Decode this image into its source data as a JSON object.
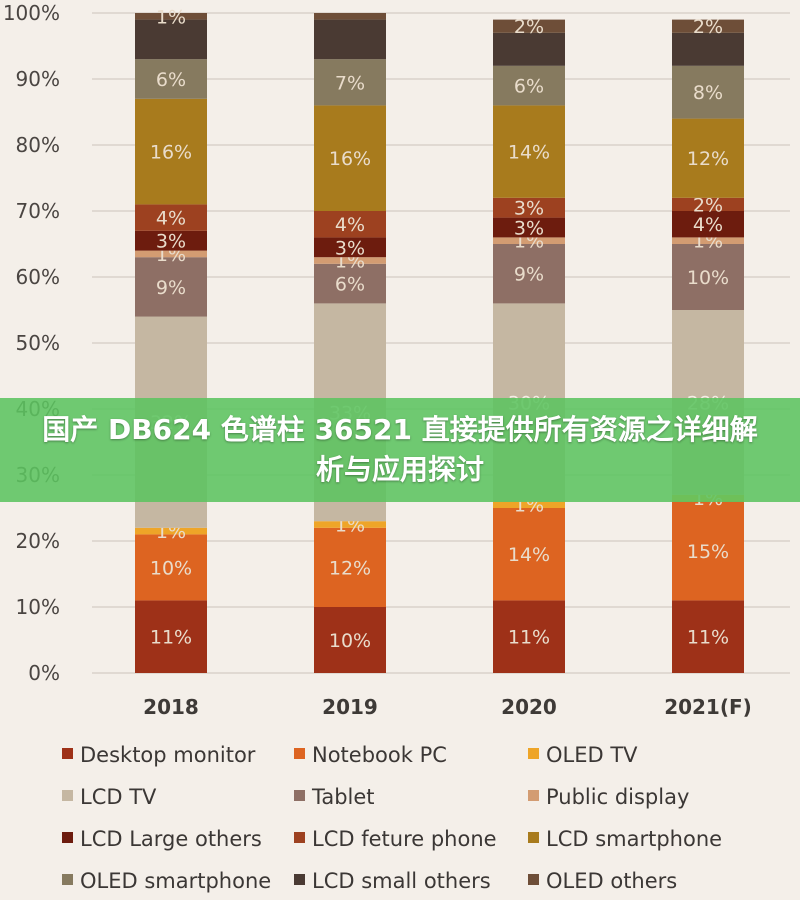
{
  "banner": {
    "text": "国产 DB624 色谱柱 36521 直接提供所有资源之详细解析与应用探讨"
  },
  "chart_data": {
    "type": "bar",
    "stacked": true,
    "categories": [
      "2018",
      "2019",
      "2020",
      "2021(F)"
    ],
    "ylim": [
      0,
      100
    ],
    "y_ticks": [
      "0%",
      "10%",
      "20%",
      "30%",
      "40%",
      "50%",
      "60%",
      "70%",
      "80%",
      "90%",
      "100%"
    ],
    "grid": true,
    "legend_position": "bottom",
    "series": [
      {
        "name": "Desktop monitor",
        "color": "#9e3118",
        "values": [
          11,
          10,
          11,
          11
        ],
        "labels": [
          "11%",
          "10%",
          "11%",
          "11%"
        ]
      },
      {
        "name": "Notebook PC",
        "color": "#dd6421",
        "values": [
          10,
          12,
          14,
          15
        ],
        "labels": [
          "10%",
          "12%",
          "14%",
          "15%"
        ]
      },
      {
        "name": "OLED TV",
        "color": "#eea528",
        "values": [
          1,
          1,
          1,
          1
        ],
        "labels": [
          "1%",
          "1%",
          "1%",
          "1%"
        ]
      },
      {
        "name": "LCD TV",
        "color": "#c5b7a2",
        "values": [
          32,
          33,
          30,
          28
        ],
        "labels": [
          "32%",
          "33%",
          "30%",
          "28%"
        ]
      },
      {
        "name": "Tablet",
        "color": "#8e6f65",
        "values": [
          9,
          6,
          9,
          10
        ],
        "labels": [
          "9%",
          "6%",
          "9%",
          "10%"
        ]
      },
      {
        "name": "Public display",
        "color": "#d39c72",
        "values": [
          1,
          1,
          1,
          1
        ],
        "labels": [
          "1%",
          "1%",
          "1%",
          "1%"
        ]
      },
      {
        "name": "LCD Large others",
        "color": "#6d1c0e",
        "values": [
          3,
          3,
          3,
          4
        ],
        "labels": [
          "3%",
          "3%",
          "3%",
          "4%"
        ]
      },
      {
        "name": "LCD feture phone",
        "color": "#9d4120",
        "values": [
          4,
          4,
          3,
          2
        ],
        "labels": [
          "4%",
          "4%",
          "3%",
          "2%"
        ]
      },
      {
        "name": "LCD smartphone",
        "color": "#a87b1d",
        "values": [
          16,
          16,
          14,
          12
        ],
        "labels": [
          "16%",
          "16%",
          "14%",
          "12%"
        ]
      },
      {
        "name": "OLED smartphone",
        "color": "#867a5f",
        "values": [
          6,
          7,
          6,
          8
        ],
        "labels": [
          "6%",
          "7%",
          "6%",
          "8%"
        ]
      },
      {
        "name": "LCD small others",
        "color": "#4a3a33",
        "values": [
          6,
          6,
          5,
          5
        ],
        "labels": [
          "",
          "",
          "",
          ""
        ]
      },
      {
        "name": "OLED others",
        "color": "#6e4e38",
        "values": [
          1,
          1,
          2,
          2
        ],
        "labels": [
          "1%",
          "",
          "2%",
          "2%"
        ]
      }
    ]
  }
}
